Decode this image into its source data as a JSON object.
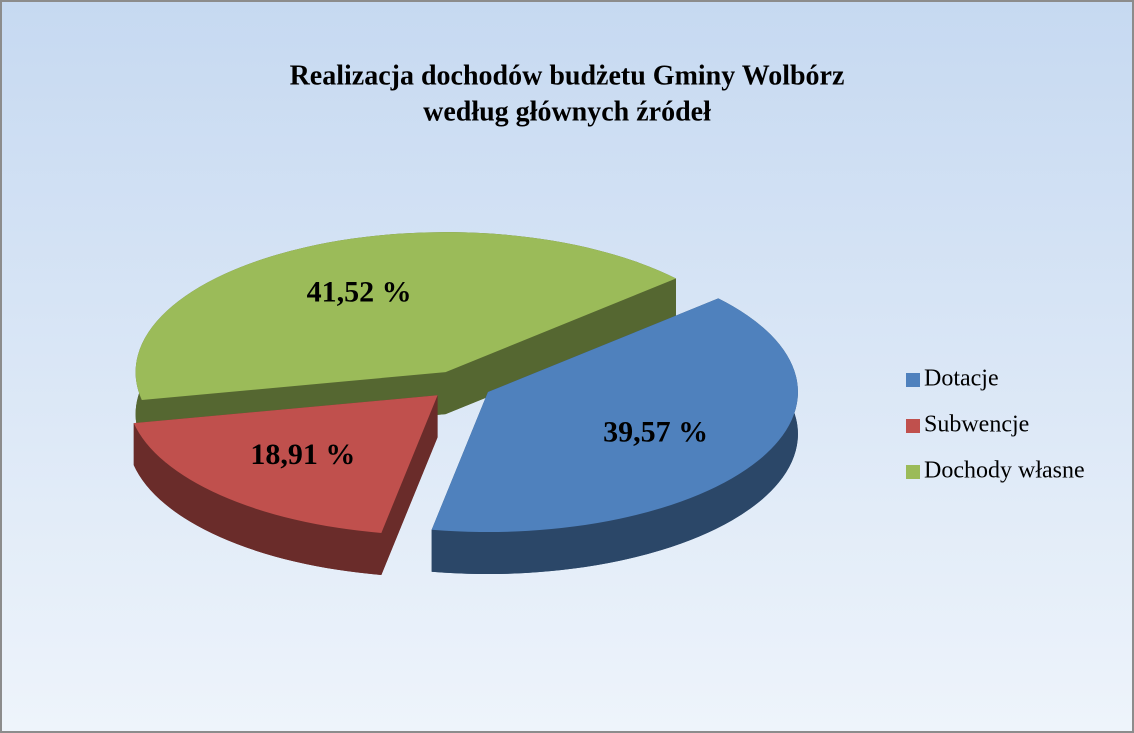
{
  "chart_data": {
    "type": "pie",
    "title": [
      "Realizacja dochodów budżetu Gminy Wolbórz",
      "według głównych źródeł"
    ],
    "categories": [
      "Dotacje",
      "Subwencje",
      "Dochody własne"
    ],
    "values": [
      39.57,
      18.91,
      41.52
    ],
    "value_labels": [
      "39,57 %",
      "18,91 %",
      "41,52 %"
    ],
    "colors": [
      "#4f81bd",
      "#c0504d",
      "#9bbb59"
    ],
    "legend": "right"
  }
}
